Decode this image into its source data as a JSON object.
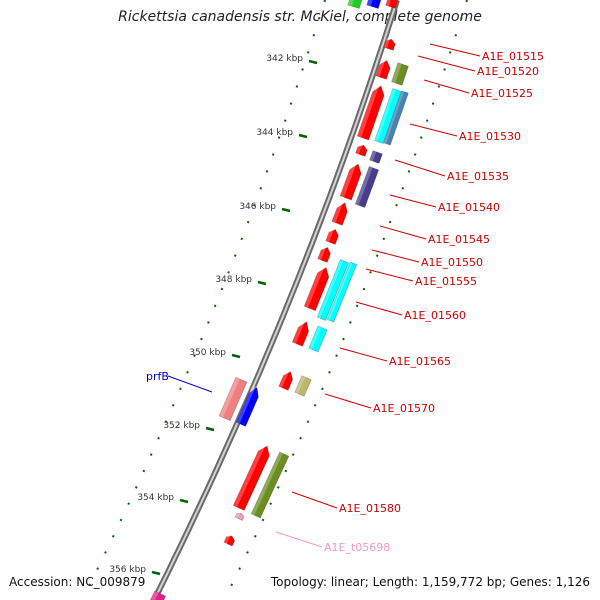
{
  "title": "Rickettsia canadensis str. McKiel, complete genome",
  "footer": {
    "accession": "Accession: NC_009879",
    "summary": "Topology: linear; Length: 1,159,772 bp; Genes: 1,126"
  },
  "scale_ticks": [
    {
      "label": "342 kbp",
      "kbp": 342
    },
    {
      "label": "344 kbp",
      "kbp": 344
    },
    {
      "label": "346 kbp",
      "kbp": 346
    },
    {
      "label": "348 kbp",
      "kbp": 348
    },
    {
      "label": "350 kbp",
      "kbp": 350
    },
    {
      "label": "352 kbp",
      "kbp": 352
    },
    {
      "label": "354 kbp",
      "kbp": 354
    },
    {
      "label": "356 kbp",
      "kbp": 356
    }
  ],
  "gene_labels": [
    {
      "name": "A1E_01515",
      "color": "#cc0000"
    },
    {
      "name": "A1E_01520",
      "color": "#cc0000"
    },
    {
      "name": "A1E_01525",
      "color": "#cc0000"
    },
    {
      "name": "A1E_01530",
      "color": "#cc0000"
    },
    {
      "name": "A1E_01535",
      "color": "#cc0000"
    },
    {
      "name": "A1E_01540",
      "color": "#cc0000"
    },
    {
      "name": "A1E_01545",
      "color": "#cc0000"
    },
    {
      "name": "A1E_01550",
      "color": "#cc0000"
    },
    {
      "name": "A1E_01555",
      "color": "#cc0000"
    },
    {
      "name": "A1E_01560",
      "color": "#cc0000"
    },
    {
      "name": "A1E_01565",
      "color": "#cc0000"
    },
    {
      "name": "A1E_01570",
      "color": "#cc0000"
    },
    {
      "name": "A1E_01580",
      "color": "#cc0000"
    },
    {
      "name": "A1E_t05698",
      "color": "#f49ac2"
    },
    {
      "name": "prfB",
      "color": "#0000cc"
    }
  ],
  "colors": {
    "cds": "#ff0000",
    "cog_olive": "#6b8e23",
    "cog_cyan": "#00ffff",
    "cog_steel": "#4682b4",
    "cog_slate": "#483d8b",
    "cog_khaki": "#bdb76b",
    "cog_pink": "#f08080",
    "prfB": "#0000ff",
    "trna": "#f49ac2",
    "backbone": "#808080",
    "ticks": "#006400"
  }
}
